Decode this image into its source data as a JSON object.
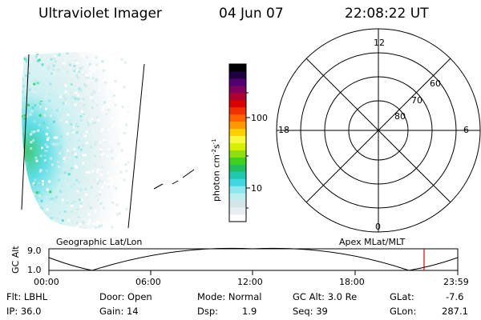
{
  "header": {
    "title": "Ultraviolet Imager",
    "date": "04 Jun 07",
    "time": "22:08:22 UT"
  },
  "colorbar": {
    "label_prefix": "photon cm",
    "label_exp1": "-2",
    "label_mid": "s",
    "label_exp2": "-1",
    "ticks": [
      "100",
      "10"
    ],
    "colors": [
      "#ffffff",
      "#e8eef2",
      "#d6e6e8",
      "#bfeef0",
      "#8ee8ee",
      "#40d8e0",
      "#20c8b0",
      "#20c060",
      "#40d020",
      "#90e010",
      "#d8f000",
      "#f8f840",
      "#ffd000",
      "#ff9800",
      "#ff6000",
      "#f03000",
      "#d80000",
      "#b00030",
      "#800060",
      "#500070",
      "#200040",
      "#000000"
    ]
  },
  "polar": {
    "labels": {
      "top": "12",
      "left": "18",
      "right": "6",
      "bottom": "0"
    },
    "rings": [
      "80",
      "70",
      "60"
    ]
  },
  "timeline": {
    "left_title": "Geographic Lat/Lon",
    "right_title": "Apex MLat/MLT",
    "yaxis_label": "GC Alt",
    "y_ticks": [
      "9.0",
      "1.0"
    ],
    "x_ticks": [
      "00:00",
      "06:00",
      "12:00",
      "18:00",
      "23:59"
    ],
    "cursor_color": "#e00000"
  },
  "footer": {
    "flt": "Flt: LBHL",
    "ip": "IP: 36.0",
    "door": "Door: Open",
    "gain": "Gain: 14",
    "mode": "Mode: Normal",
    "dsp_label": "Dsp:",
    "dsp_value": "1.9",
    "gcalt": "GC Alt: 3.0 Re",
    "seq": "Seq: 39",
    "glat_label": "GLat:",
    "glat_value": "-7.6",
    "glon_label": "GLon:",
    "glon_value": "287.1"
  }
}
